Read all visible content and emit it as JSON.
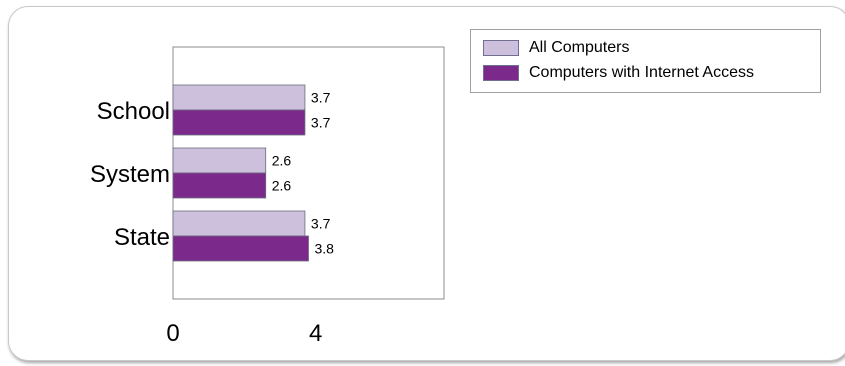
{
  "chart_data": {
    "type": "bar",
    "orientation": "horizontal",
    "categories": [
      "School",
      "System",
      "State"
    ],
    "series": [
      {
        "name": "All Computers",
        "values": [
          3.7,
          2.6,
          3.7
        ],
        "color": "#ccc0dc"
      },
      {
        "name": "Computers with Internet Access",
        "values": [
          3.7,
          2.6,
          3.8
        ],
        "color": "#7b2a8c"
      }
    ],
    "xlim": [
      0,
      7.6
    ],
    "x_ticks": [
      0,
      4
    ],
    "x_tick_labels": [
      "0",
      "4"
    ],
    "grid": false,
    "legend_position": "top-right",
    "data_labels": true
  }
}
